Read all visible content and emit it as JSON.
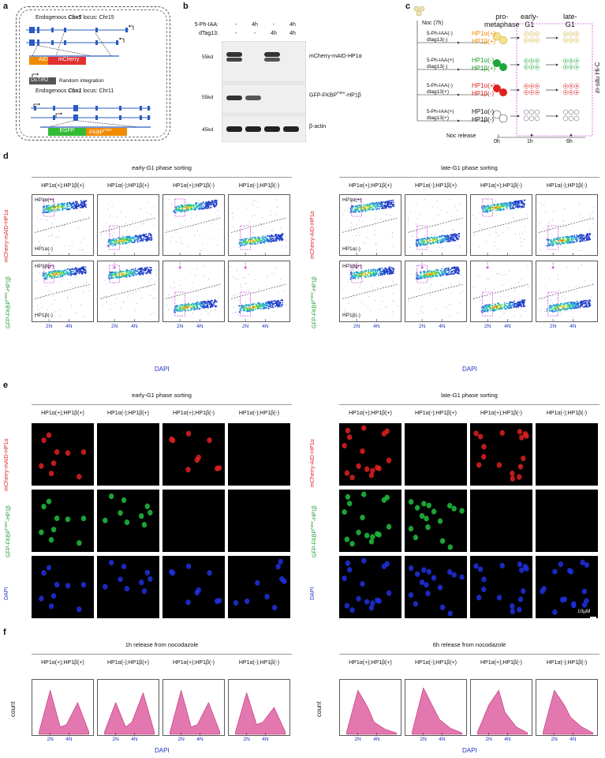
{
  "panels": {
    "a": "a",
    "b": "b",
    "c": "c",
    "d": "d",
    "e": "e",
    "f": "f"
  },
  "a": {
    "cbx5_title_pre": "Endogenous ",
    "cbx5_title_gene": "Cbx5",
    "cbx5_title_post": " locus: Chr15",
    "aid": "AID",
    "mcherry": "mCherry",
    "ostir": "OsTIR2",
    "random": "Random integration",
    "cbx1_title_pre": "Endogenous ",
    "cbx1_title_gene": "Cbx1",
    "cbx1_title_post": " locus: Chr11",
    "egfp": "EGFP",
    "fkbp": "FKBP",
    "fkbp_sup": "F36V"
  },
  "b": {
    "row1_label": "5-Ph-IAA:",
    "row2_label": "dTag13:",
    "row1_vals": [
      "-",
      "4h",
      "-",
      "4h"
    ],
    "row2_vals": [
      "-",
      "-",
      "4h",
      "4h"
    ],
    "mw": [
      "55kd",
      "55kd",
      "45kd"
    ],
    "blot_labels": [
      "mCherry-mAID-HP1α",
      "GFP-FKBP",
      "β-actin"
    ],
    "blot2_sup": "F36V",
    "blot2_post": "-HP1β"
  },
  "c": {
    "noc": "Noc (7h)",
    "col_prometa": "pro-\nmetaphase",
    "col_early": "early-\nG1",
    "col_late": "late-\nG1",
    "rows": [
      {
        "t1": "5-Ph-IAA(-)",
        "t2": "dtag13(-)",
        "a": "HP1α(+)",
        "b": "HP1β(+)"
      },
      {
        "t1": "5-Ph-IAA(+)",
        "t2": "dtag13(-)",
        "a": "HP1α(-)",
        "b": "HP1β(+)"
      },
      {
        "t1": "5-Ph-IAA(-)",
        "t2": "dtag13(+)",
        "a": "HP1α(+)",
        "b": "HP1β(-)"
      },
      {
        "t1": "5-Ph-IAA(+)",
        "t2": "dtag13(+)",
        "a": "HP1α(-)",
        "b": "HP1β(-)"
      }
    ],
    "release": "Noc release",
    "times": [
      "0h",
      "1h",
      "6h"
    ],
    "hic_pre": "in-situ",
    "hic_post": " Hi-C"
  },
  "d": {
    "early_title": "early-G1 phase sorting",
    "late_title": "late-G1 phase sorting",
    "cols": [
      "HP1α(+);HP1β(+)",
      "HP1α(-);HP1β(+)",
      "HP1α(+);HP1β(-)",
      "HP1α(-);HP1β(-)"
    ],
    "y_left_top": "mCherry-mAID-HP1α",
    "y_right_top": "mCherry-AID-HP1α",
    "y_bottom_pre": "GFP-FKBP",
    "y_bottom_sup": "F36V",
    "y_bottom_post": "-HP1β",
    "gate_a_pos": "HP1α(+)",
    "gate_a_neg": "HP1α(-)",
    "gate_b_pos": "HP1β(+)",
    "gate_b_neg": "HP1β(-)",
    "x2n": "2N",
    "x4n": "4N",
    "xlabel": "DAPI"
  },
  "e": {
    "early_title": "early-G1 phase sorting",
    "late_title": "late-G1 phase sorting",
    "rowlabel_dapi": "DAPI",
    "scalebar": "10μM"
  },
  "f": {
    "title_1h": "1h release from nocodazole",
    "title_6h": "6h release from nocodazole",
    "ylabel": "count",
    "xlabel": "DAPI"
  },
  "colors": {
    "red": "#dd2222",
    "green": "#1a9a2a",
    "blue": "#2030c0",
    "magenta": "#d050e0",
    "hist_fill": "#e377b0",
    "hist_line": "#c0306f"
  },
  "chart_data": [
    {
      "type": "area",
      "title": "1h release from nocodazole",
      "xlabel": "DAPI",
      "ylabel": "count",
      "x_ticks": [
        "2N",
        "4N"
      ],
      "series": [
        {
          "name": "HP1α(+);HP1β(+)",
          "values": [
            0.05,
            0.9,
            0.15,
            0.2,
            0.65,
            0.05
          ]
        },
        {
          "name": "HP1α(-);HP1β(+)",
          "values": [
            0.05,
            0.65,
            0.15,
            0.25,
            0.85,
            0.05
          ]
        },
        {
          "name": "HP1α(+);HP1β(-)",
          "values": [
            0.05,
            0.9,
            0.15,
            0.2,
            0.65,
            0.05
          ]
        },
        {
          "name": "HP1α(-);HP1β(-)",
          "values": [
            0.05,
            0.85,
            0.2,
            0.25,
            0.55,
            0.05
          ]
        }
      ]
    },
    {
      "type": "area",
      "title": "6h release from nocodazole",
      "xlabel": "DAPI",
      "ylabel": "count",
      "x_ticks": [
        "2N",
        "4N"
      ],
      "series": [
        {
          "name": "HP1α(+);HP1β(+)",
          "values": [
            0.05,
            0.9,
            0.55,
            0.25,
            0.1,
            0.03
          ]
        },
        {
          "name": "HP1α(-);HP1β(+)",
          "values": [
            0.05,
            0.95,
            0.55,
            0.3,
            0.12,
            0.03
          ]
        },
        {
          "name": "HP1α(+);HP1β(-)",
          "values": [
            0.05,
            0.6,
            0.9,
            0.45,
            0.15,
            0.03
          ]
        },
        {
          "name": "HP1α(-);HP1β(-)",
          "values": [
            0.05,
            0.9,
            0.6,
            0.35,
            0.15,
            0.03
          ]
        }
      ]
    }
  ]
}
